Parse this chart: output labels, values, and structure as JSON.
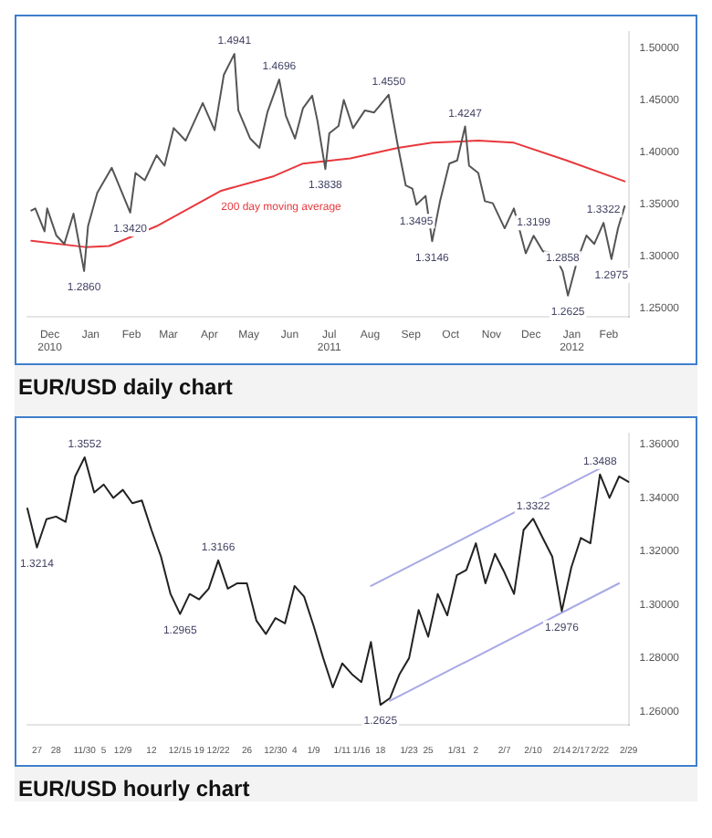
{
  "chart_data": [
    {
      "type": "line",
      "title": "EUR/USD daily chart",
      "marker": "none",
      "legend": false,
      "x": [
        "2010-12-01",
        "2010-12-04",
        "2010-12-11",
        "2010-12-13",
        "2010-12-20",
        "2010-12-26",
        "2011-01-02",
        "2011-01-10",
        "2011-01-13",
        "2011-01-20",
        "2011-01-31",
        "2011-02-14",
        "2011-02-18",
        "2011-02-25",
        "2011-03-06",
        "2011-03-12",
        "2011-03-19",
        "2011-03-28",
        "2011-04-10",
        "2011-04-19",
        "2011-04-26",
        "2011-05-04",
        "2011-05-07",
        "2011-05-16",
        "2011-05-23",
        "2011-05-29",
        "2011-06-07",
        "2011-06-12",
        "2011-06-19",
        "2011-06-25",
        "2011-07-02",
        "2011-07-06",
        "2011-07-12",
        "2011-07-15",
        "2011-07-22",
        "2011-07-26",
        "2011-08-02",
        "2011-08-11",
        "2011-08-18",
        "2011-08-29",
        "2011-09-05",
        "2011-09-11",
        "2011-09-16",
        "2011-09-19",
        "2011-09-26",
        "2011-10-01",
        "2011-10-07",
        "2011-10-14",
        "2011-10-20",
        "2011-10-26",
        "2011-10-29",
        "2011-11-05",
        "2011-11-10",
        "2011-11-16",
        "2011-11-25",
        "2011-12-02",
        "2011-12-11",
        "2011-12-17",
        "2011-12-24",
        "2012-01-01",
        "2012-01-08",
        "2012-01-12",
        "2012-01-19",
        "2012-01-26",
        "2012-02-01",
        "2012-02-08",
        "2012-02-14",
        "2012-02-19",
        "2012-02-24"
      ],
      "series": [
        {
          "color": "#555555",
          "values": [
            1.344,
            1.346,
            1.324,
            1.346,
            1.32,
            1.312,
            1.341,
            1.286,
            1.329,
            1.361,
            1.385,
            1.342,
            1.38,
            1.373,
            1.397,
            1.387,
            1.423,
            1.411,
            1.447,
            1.421,
            1.474,
            1.4941,
            1.44,
            1.413,
            1.404,
            1.438,
            1.4696,
            1.435,
            1.413,
            1.442,
            1.454,
            1.43,
            1.3838,
            1.418,
            1.425,
            1.45,
            1.423,
            1.44,
            1.438,
            1.455,
            1.406,
            1.368,
            1.365,
            1.3495,
            1.358,
            1.3146,
            1.353,
            1.389,
            1.392,
            1.4247,
            1.387,
            1.38,
            1.353,
            1.351,
            1.327,
            1.346,
            1.303,
            1.3199,
            1.305,
            1.303,
            1.2858,
            1.2625,
            1.296,
            1.32,
            1.312,
            1.3322,
            1.2975,
            1.327,
            1.348
          ]
        },
        {
          "type": "line",
          "name": "200 day moving average",
          "color": "#e8383d",
          "x": [
            "2010-12-01",
            "2011-01-11",
            "2011-01-29",
            "2011-03-06",
            "2011-04-24",
            "2011-06-03",
            "2011-06-25",
            "2011-07-31",
            "2011-09-05",
            "2011-10-01",
            "2011-11-05",
            "2011-12-02",
            "2012-01-11",
            "2012-02-24"
          ],
          "values": [
            1.315,
            1.309,
            1.31,
            1.329,
            1.363,
            1.377,
            1.389,
            1.394,
            1.404,
            1.409,
            1.411,
            1.409,
            1.392,
            1.372
          ]
        }
      ],
      "xlim": [
        "2010-11-28",
        "2012-02-27"
      ],
      "xticks": [
        {
          "value": "2010-12-15",
          "label": "Dec 2010"
        },
        {
          "value": "2011-01-15",
          "label": "Jan"
        },
        {
          "value": "2011-02-15",
          "label": "Feb"
        },
        {
          "value": "2011-03-15",
          "label": "Mar"
        },
        {
          "value": "2011-04-15",
          "label": "Apr"
        },
        {
          "value": "2011-05-15",
          "label": "May"
        },
        {
          "value": "2011-06-15",
          "label": "Jun"
        },
        {
          "value": "2011-07-15",
          "label": "Jul 2011"
        },
        {
          "value": "2011-08-15",
          "label": "Aug"
        },
        {
          "value": "2011-09-15",
          "label": "Sep"
        },
        {
          "value": "2011-10-15",
          "label": "Oct"
        },
        {
          "value": "2011-11-15",
          "label": "Nov"
        },
        {
          "value": "2011-12-15",
          "label": "Dec"
        },
        {
          "value": "2012-01-15",
          "label": "Jan 2012"
        },
        {
          "value": "2012-02-12",
          "label": "Feb"
        }
      ],
      "ylim": [
        1.242,
        1.515
      ],
      "yticks": [
        {
          "value": 1.25,
          "label": "1.25000"
        },
        {
          "value": 1.3,
          "label": "1.30000"
        },
        {
          "value": 1.35,
          "label": "1.35000"
        },
        {
          "value": 1.4,
          "label": "1.40000"
        },
        {
          "value": 1.45,
          "label": "1.45000"
        },
        {
          "value": 1.5,
          "label": "1.50000"
        }
      ],
      "annotations": [
        {
          "text": "1.2860",
          "x": "2011-01-10",
          "y": 1.286
        },
        {
          "text": "1.3420",
          "x": "2011-02-14",
          "y": 1.342
        },
        {
          "text": "1.4941",
          "x": "2011-05-04",
          "y": 1.4941
        },
        {
          "text": "1.4696",
          "x": "2011-06-07",
          "y": 1.4696
        },
        {
          "text": "1.3838",
          "x": "2011-07-12",
          "y": 1.3838
        },
        {
          "text": "1.4550",
          "x": "2011-08-29",
          "y": 1.455
        },
        {
          "text": "1.3495",
          "x": "2011-09-19",
          "y": 1.3495
        },
        {
          "text": "1.3146",
          "x": "2011-10-01",
          "y": 1.3146
        },
        {
          "text": "1.4247",
          "x": "2011-10-26",
          "y": 1.4247
        },
        {
          "text": "1.3199",
          "x": "2011-12-17",
          "y": 1.3199
        },
        {
          "text": "1.2858",
          "x": "2012-01-08",
          "y": 1.2858
        },
        {
          "text": "1.2625",
          "x": "2012-01-12",
          "y": 1.2625
        },
        {
          "text": "1.3322",
          "x": "2012-02-08",
          "y": 1.3322
        },
        {
          "text": "1.2975",
          "x": "2012-02-14",
          "y": 1.2975
        }
      ]
    },
    {
      "type": "line",
      "title": "EUR/USD hourly chart",
      "marker": "none",
      "legend": false,
      "categories": [
        null,
        "27",
        null,
        "28",
        null,
        null,
        "11/30",
        null,
        "5",
        null,
        "12/9",
        null,
        null,
        "12",
        null,
        null,
        "12/15",
        null,
        "19",
        null,
        "12/22",
        null,
        null,
        "26",
        null,
        null,
        "12/30",
        null,
        "4",
        null,
        "1/9",
        null,
        null,
        "1/11",
        null,
        "1/16",
        null,
        "18",
        null,
        null,
        "1/23",
        null,
        "25",
        null,
        null,
        "1/31",
        null,
        "2",
        null,
        null,
        "2/7",
        null,
        null,
        "2/10",
        null,
        null,
        "2/14",
        null,
        "2/17",
        null,
        "2/22",
        null,
        null,
        "2/29"
      ],
      "series": [
        {
          "color": "#222222",
          "values": [
            1.336,
            1.3214,
            1.332,
            1.333,
            1.331,
            1.348,
            1.3552,
            1.342,
            1.345,
            1.34,
            1.343,
            1.338,
            1.339,
            1.328,
            1.318,
            1.304,
            1.2965,
            1.304,
            1.302,
            1.306,
            1.3166,
            1.306,
            1.308,
            1.308,
            1.294,
            1.289,
            1.295,
            1.293,
            1.307,
            1.303,
            1.292,
            1.28,
            1.269,
            1.278,
            1.274,
            1.271,
            1.286,
            1.2625,
            1.265,
            1.274,
            1.28,
            1.298,
            1.288,
            1.304,
            1.296,
            1.311,
            1.313,
            1.323,
            1.308,
            1.319,
            1.312,
            1.304,
            1.328,
            1.3322,
            1.325,
            1.318,
            1.2976,
            1.314,
            1.325,
            1.323,
            1.3488,
            1.34,
            1.348,
            1.346
          ]
        },
        {
          "type": "line",
          "color": "#a9a9e6",
          "values": [
            null,
            null,
            null,
            null,
            null,
            null,
            null,
            null,
            null,
            null,
            null,
            null,
            null,
            null,
            null,
            null,
            null,
            null,
            null,
            null,
            null,
            null,
            null,
            null,
            null,
            null,
            null,
            null,
            null,
            null,
            null,
            null,
            null,
            null,
            null,
            null,
            1.307,
            null,
            null,
            null,
            null,
            null,
            null,
            null,
            null,
            null,
            null,
            null,
            null,
            null,
            null,
            null,
            null,
            null,
            null,
            null,
            null,
            null,
            null,
            null,
            1.351,
            null,
            null,
            null
          ]
        },
        {
          "type": "line",
          "color": "#a9a9e6",
          "values": [
            null,
            null,
            null,
            null,
            null,
            null,
            null,
            null,
            null,
            null,
            null,
            null,
            null,
            null,
            null,
            null,
            null,
            null,
            null,
            null,
            null,
            null,
            null,
            null,
            null,
            null,
            null,
            null,
            null,
            null,
            null,
            null,
            null,
            null,
            null,
            null,
            null,
            null,
            1.264,
            null,
            null,
            null,
            null,
            null,
            null,
            null,
            null,
            null,
            null,
            null,
            null,
            null,
            null,
            null,
            null,
            null,
            null,
            null,
            null,
            null,
            null,
            null,
            1.308,
            null
          ]
        }
      ],
      "ylim": [
        1.255,
        1.364
      ],
      "yticks": [
        {
          "value": 1.26,
          "label": "1.26000"
        },
        {
          "value": 1.28,
          "label": "1.28000"
        },
        {
          "value": 1.3,
          "label": "1.30000"
        },
        {
          "value": 1.32,
          "label": "1.32000"
        },
        {
          "value": 1.34,
          "label": "1.34000"
        },
        {
          "value": 1.36,
          "label": "1.36000"
        }
      ],
      "annotations": [
        {
          "text": "1.3214",
          "x": "27",
          "y": 1.3214
        },
        {
          "text": "1.3552",
          "x": "11/30",
          "y": 1.3552
        },
        {
          "text": "1.2965",
          "x": "12/15",
          "y": 1.2965
        },
        {
          "text": "1.3166",
          "x": "12/22",
          "y": 1.3166
        },
        {
          "text": "1.2625",
          "x": "18",
          "y": 1.2625
        },
        {
          "text": "1.3322",
          "x": "2/10",
          "y": 1.3322
        },
        {
          "text": "1.2976",
          "x": "2/14",
          "y": 1.2976
        },
        {
          "text": "1.3488",
          "x": "2/22",
          "y": 1.3488
        }
      ]
    }
  ]
}
